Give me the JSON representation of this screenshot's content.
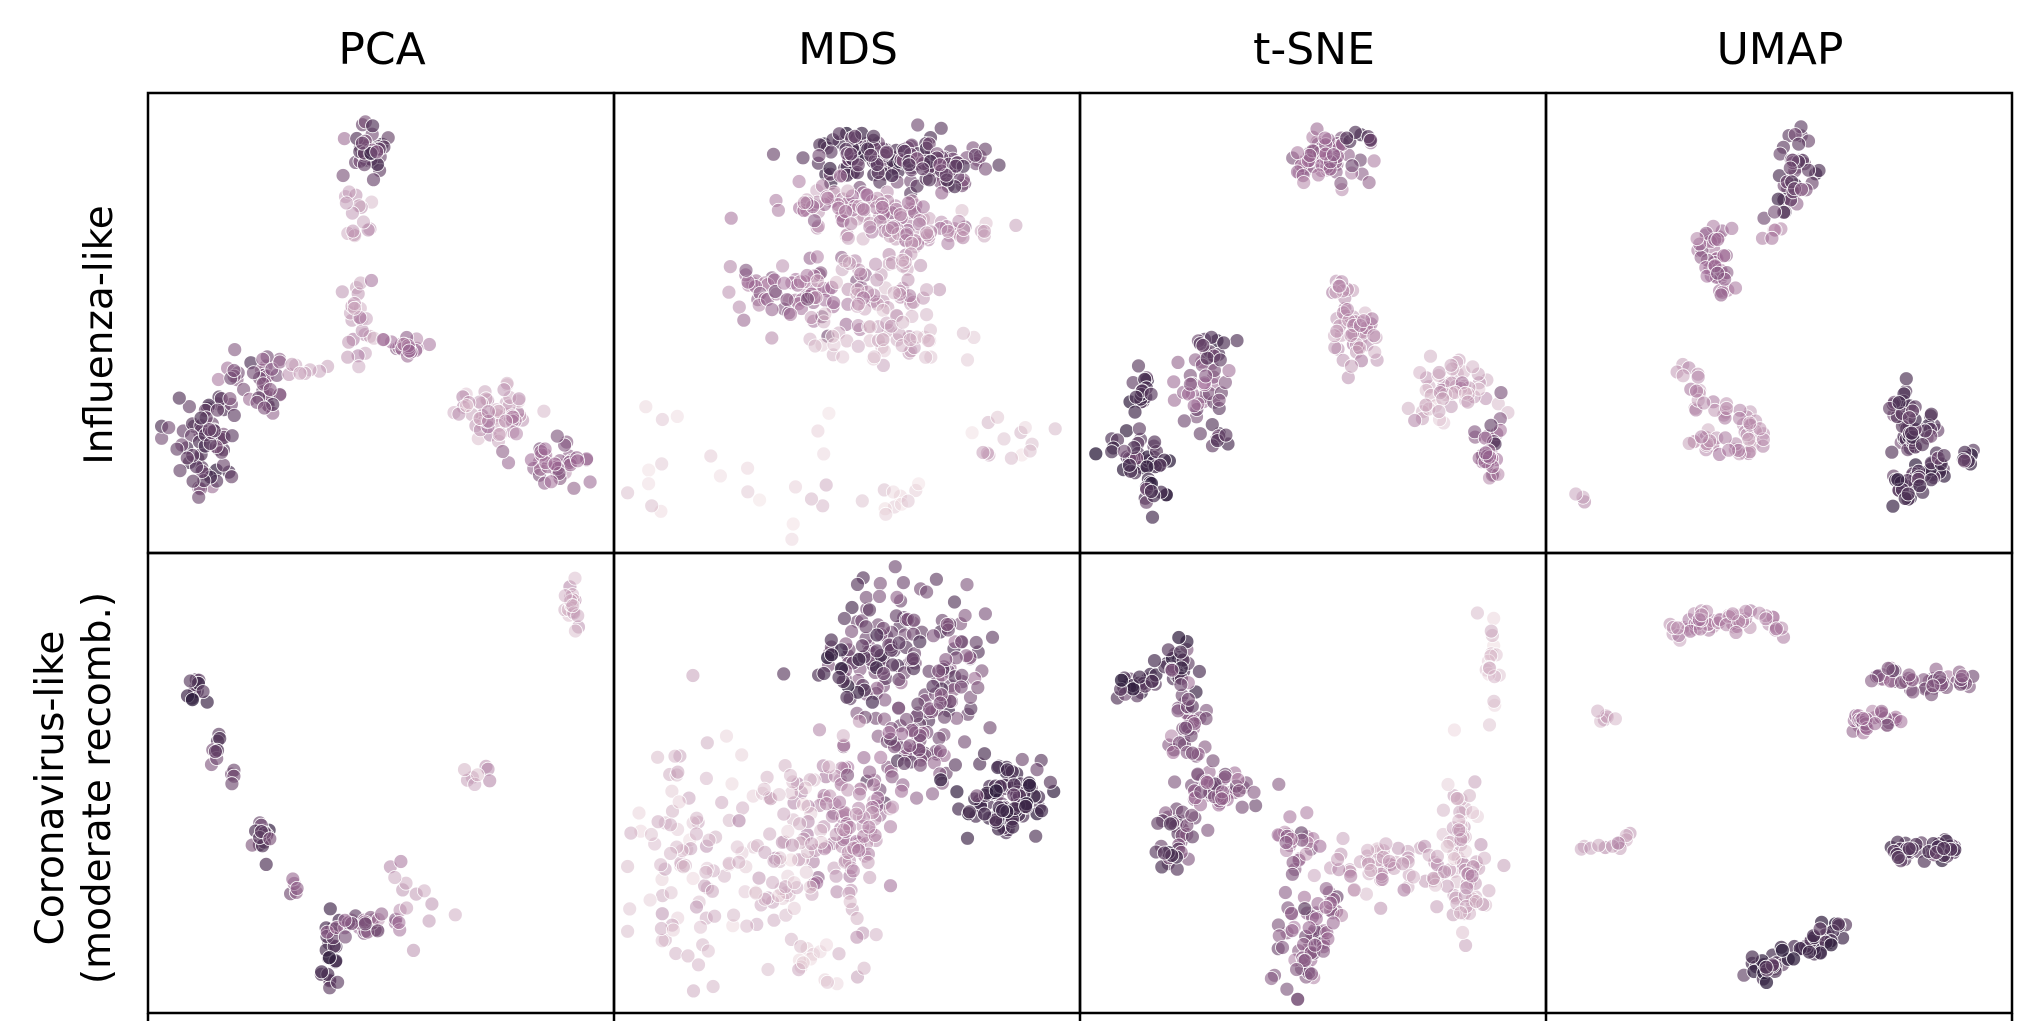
{
  "chart_data": {
    "type": "scatter",
    "title": "",
    "colors": {
      "light": "#ecd3d8",
      "mid": "#a06a96",
      "dark": "#2b1c3b"
    },
    "columns": [
      "PCA",
      "MDS",
      "t-SNE",
      "UMAP"
    ],
    "rows": [
      {
        "label_lines": [
          "Influenza-like"
        ]
      },
      {
        "label_lines": [
          "Coronavirus-like",
          "(moderate recomb.)"
        ]
      }
    ],
    "axes": {
      "xlim": [
        0,
        100
      ],
      "ylim": [
        0,
        100
      ],
      "ticks": false,
      "grid": false,
      "legend": "none"
    },
    "panels": [
      {
        "method": "PCA",
        "row": "Influenza-like",
        "clusters": [
          {
            "x": 47,
            "y": 92,
            "sx": 3,
            "sy": 3,
            "n": 40,
            "shade": 0.75
          },
          {
            "x": 44,
            "y": 76,
            "sx": 1.5,
            "sy": 6,
            "n": 14,
            "shade": 0.3
          },
          {
            "x": 45,
            "y": 55,
            "sx": 1.5,
            "sy": 7,
            "n": 26,
            "shade": 0.35
          },
          {
            "x": 57,
            "y": 44,
            "sx": 3,
            "sy": 1.5,
            "n": 18,
            "shade": 0.5
          },
          {
            "x": 8,
            "y": 22,
            "sx": 3.5,
            "sy": 6,
            "n": 70,
            "shade": 0.78
          },
          {
            "x": 20,
            "y": 35,
            "sx": 4,
            "sy": 4,
            "n": 40,
            "shade": 0.62
          },
          {
            "x": 32,
            "y": 39,
            "sx": 2.5,
            "sy": 1.5,
            "n": 8,
            "shade": 0.3
          },
          {
            "x": 77,
            "y": 28,
            "sx": 5.5,
            "sy": 3,
            "n": 55,
            "shade": 0.3
          },
          {
            "x": 91,
            "y": 17,
            "sx": 3.5,
            "sy": 3,
            "n": 40,
            "shade": 0.55
          }
        ]
      },
      {
        "method": "MDS",
        "row": "Influenza-like",
        "clusters": [
          {
            "x": 55,
            "y": 90,
            "sx": 7,
            "sy": 3,
            "n": 90,
            "shade": 0.82
          },
          {
            "x": 72,
            "y": 88,
            "sx": 6,
            "sy": 3,
            "n": 75,
            "shade": 0.72
          },
          {
            "x": 52,
            "y": 78,
            "sx": 11,
            "sy": 2.5,
            "n": 80,
            "shade": 0.4
          },
          {
            "x": 68,
            "y": 72,
            "sx": 10,
            "sy": 2,
            "n": 55,
            "shade": 0.35
          },
          {
            "x": 38,
            "y": 58,
            "sx": 9,
            "sy": 4,
            "n": 75,
            "shade": 0.5
          },
          {
            "x": 58,
            "y": 56,
            "sx": 8,
            "sy": 6,
            "n": 70,
            "shade": 0.3
          },
          {
            "x": 62,
            "y": 45,
            "sx": 8,
            "sy": 3,
            "n": 30,
            "shade": 0.15
          },
          {
            "x": 20,
            "y": 15,
            "sx": 18,
            "sy": 9,
            "n": 22,
            "shade": 0.1
          },
          {
            "x": 90,
            "y": 20,
            "sx": 6,
            "sy": 4,
            "n": 14,
            "shade": 0.15
          },
          {
            "x": 60,
            "y": 8,
            "sx": 9,
            "sy": 2,
            "n": 12,
            "shade": 0.1
          }
        ]
      },
      {
        "method": "t-SNE",
        "row": "Influenza-like",
        "clusters": [
          {
            "x": 53,
            "y": 90,
            "sx": 4,
            "sy": 3,
            "n": 70,
            "shade": 0.55
          },
          {
            "x": 61,
            "y": 95,
            "sx": 2,
            "sy": 1.2,
            "n": 8,
            "shade": 0.85
          },
          {
            "x": 9,
            "y": 33,
            "sx": 2,
            "sy": 2,
            "n": 18,
            "shade": 0.85
          },
          {
            "x": 24,
            "y": 34,
            "sx": 3,
            "sy": 4,
            "n": 35,
            "shade": 0.6
          },
          {
            "x": 26,
            "y": 44,
            "sx": 2,
            "sy": 2,
            "n": 14,
            "shade": 0.85
          },
          {
            "x": 8,
            "y": 18,
            "sx": 3,
            "sy": 3,
            "n": 40,
            "shade": 0.85
          },
          {
            "x": 12,
            "y": 8,
            "sx": 1.5,
            "sy": 2,
            "n": 12,
            "shade": 0.85
          },
          {
            "x": 28,
            "y": 22,
            "sx": 1.5,
            "sy": 1.5,
            "n": 8,
            "shade": 0.85
          },
          {
            "x": 60,
            "y": 48,
            "sx": 3,
            "sy": 4,
            "n": 50,
            "shade": 0.35
          },
          {
            "x": 56,
            "y": 60,
            "sx": 1,
            "sy": 2,
            "n": 8,
            "shade": 0.35
          },
          {
            "x": 84,
            "y": 34,
            "sx": 5,
            "sy": 3,
            "n": 45,
            "shade": 0.25
          },
          {
            "x": 92,
            "y": 20,
            "sx": 2,
            "sy": 4,
            "n": 30,
            "shade": 0.55
          },
          {
            "x": 78,
            "y": 27,
            "sx": 2,
            "sy": 2,
            "n": 8,
            "shade": 0.25
          }
        ]
      },
      {
        "method": "UMAP",
        "row": "Influenza-like",
        "path_clusters": [
          {
            "path": [
              [
                55,
                96
              ],
              [
                55,
                84
              ],
              [
                50,
                76
              ]
            ],
            "w": 2.2,
            "n": 45,
            "shade": 0.75
          },
          {
            "path": [
              [
                36,
                73
              ],
              [
                33,
                66
              ],
              [
                36,
                60
              ]
            ],
            "w": 1.8,
            "n": 40,
            "shade": 0.5
          },
          {
            "path": [
              [
                27,
                40
              ],
              [
                32,
                30
              ],
              [
                40,
                27
              ],
              [
                45,
                25
              ]
            ],
            "w": 1.5,
            "n": 30,
            "shade": 0.35
          },
          {
            "path": [
              [
                30,
                22
              ],
              [
                38,
                19
              ],
              [
                44,
                20
              ],
              [
                45,
                26
              ]
            ],
            "w": 1.5,
            "n": 35,
            "shade": 0.35
          },
          {
            "path": [
              [
                78,
                32
              ],
              [
                82,
                20
              ],
              [
                86,
                28
              ]
            ],
            "w": 1.8,
            "n": 55,
            "shade": 0.8
          },
          {
            "path": [
              [
                76,
                10
              ],
              [
                86,
                14
              ],
              [
                88,
                16
              ]
            ],
            "w": 1.8,
            "n": 50,
            "shade": 0.85
          },
          {
            "path": [
              [
                95,
                19
              ],
              [
                95,
                16
              ]
            ],
            "w": 1,
            "n": 8,
            "shade": 0.85
          },
          {
            "path": [
              [
                48,
                71
              ],
              [
                48,
                72
              ]
            ],
            "w": 1,
            "n": 5,
            "shade": 0.45
          },
          {
            "path": [
              [
                3,
                8
              ],
              [
                3,
                9
              ]
            ],
            "w": 1,
            "n": 3,
            "shade": 0.3
          }
        ]
      },
      {
        "method": "PCA",
        "row": "Coronavirus-like",
        "clusters": [
          {
            "x": 95,
            "y": 92,
            "sx": 1,
            "sy": 3,
            "n": 20,
            "shade": 0.25
          },
          {
            "x": 6,
            "y": 73,
            "sx": 1,
            "sy": 2,
            "n": 12,
            "shade": 0.85
          },
          {
            "x": 11,
            "y": 58,
            "sx": 1,
            "sy": 3,
            "n": 9,
            "shade": 0.8
          },
          {
            "x": 15,
            "y": 52,
            "sx": 1,
            "sy": 1,
            "n": 4,
            "shade": 0.7
          },
          {
            "x": 22,
            "y": 36,
            "sx": 1.2,
            "sy": 3,
            "n": 15,
            "shade": 0.8
          },
          {
            "x": 29,
            "y": 25,
            "sx": 1,
            "sy": 1.5,
            "n": 5,
            "shade": 0.55
          },
          {
            "x": 38,
            "y": 8,
            "sx": 1,
            "sy": 6,
            "n": 22,
            "shade": 0.85
          },
          {
            "x": 47,
            "y": 16,
            "sx": 4,
            "sy": 1.2,
            "n": 30,
            "shade": 0.6
          },
          {
            "x": 58,
            "y": 21,
            "sx": 4,
            "sy": 5,
            "n": 14,
            "shade": 0.35
          },
          {
            "x": 74,
            "y": 52,
            "sx": 2,
            "sy": 2,
            "n": 8,
            "shade": 0.3
          }
        ]
      },
      {
        "method": "MDS",
        "row": "Coronavirus-like",
        "clusters": [
          {
            "x": 58,
            "y": 82,
            "sx": 6,
            "sy": 8,
            "n": 90,
            "shade": 0.72
          },
          {
            "x": 72,
            "y": 76,
            "sx": 6,
            "sy": 9,
            "n": 80,
            "shade": 0.7
          },
          {
            "x": 66,
            "y": 58,
            "sx": 5,
            "sy": 6,
            "n": 55,
            "shade": 0.65
          },
          {
            "x": 88,
            "y": 45,
            "sx": 5,
            "sy": 5,
            "n": 100,
            "shade": 0.88
          },
          {
            "x": 48,
            "y": 45,
            "sx": 6,
            "sy": 8,
            "n": 70,
            "shade": 0.45
          },
          {
            "x": 52,
            "y": 32,
            "sx": 3,
            "sy": 12,
            "n": 45,
            "shade": 0.35
          },
          {
            "x": 12,
            "y": 32,
            "sx": 7,
            "sy": 16,
            "n": 90,
            "shade": 0.2
          },
          {
            "x": 35,
            "y": 34,
            "sx": 5,
            "sy": 12,
            "n": 70,
            "shade": 0.2
          },
          {
            "x": 42,
            "y": 8,
            "sx": 3,
            "sy": 4,
            "n": 14,
            "shade": 0.15
          },
          {
            "x": 48,
            "y": 78,
            "sx": 5,
            "sy": 6,
            "n": 18,
            "shade": 0.85
          }
        ]
      },
      {
        "method": "t-SNE",
        "row": "Coronavirus-like",
        "clusters": [
          {
            "x": 8,
            "y": 74,
            "sx": 2.5,
            "sy": 2,
            "n": 25,
            "shade": 0.85
          },
          {
            "x": 18,
            "y": 79,
            "sx": 2,
            "sy": 3,
            "n": 30,
            "shade": 0.85
          },
          {
            "x": 20,
            "y": 63,
            "sx": 2,
            "sy": 5,
            "n": 40,
            "shade": 0.65
          },
          {
            "x": 28,
            "y": 48,
            "sx": 5,
            "sy": 3,
            "n": 45,
            "shade": 0.62
          },
          {
            "x": 18,
            "y": 40,
            "sx": 2.5,
            "sy": 4,
            "n": 25,
            "shade": 0.7
          },
          {
            "x": 16,
            "y": 33,
            "sx": 2,
            "sy": 2,
            "n": 12,
            "shade": 0.82
          },
          {
            "x": 46,
            "y": 35,
            "sx": 2,
            "sy": 3,
            "n": 25,
            "shade": 0.5
          },
          {
            "x": 48,
            "y": 12,
            "sx": 3,
            "sy": 8,
            "n": 55,
            "shade": 0.62
          },
          {
            "x": 54,
            "y": 20,
            "sx": 2.5,
            "sy": 2,
            "n": 12,
            "shade": 0.6
          },
          {
            "x": 68,
            "y": 30,
            "sx": 8,
            "sy": 3,
            "n": 60,
            "shade": 0.3
          },
          {
            "x": 86,
            "y": 24,
            "sx": 3,
            "sy": 6,
            "n": 45,
            "shade": 0.3
          },
          {
            "x": 84,
            "y": 43,
            "sx": 2,
            "sy": 6,
            "n": 30,
            "shade": 0.2
          },
          {
            "x": 92,
            "y": 78,
            "sx": 1,
            "sy": 6,
            "n": 18,
            "shade": 0.15
          }
        ]
      },
      {
        "method": "UMAP",
        "row": "Coronavirus-like",
        "path_clusters": [
          {
            "path": [
              [
                25,
                86
              ],
              [
                31,
                88
              ],
              [
                37,
                89
              ],
              [
                45,
                89
              ],
              [
                50,
                88
              ]
            ],
            "w": 1.5,
            "n": 55,
            "shade": 0.4
          },
          {
            "path": [
              [
                74,
                76
              ],
              [
                80,
                74
              ],
              [
                88,
                74
              ],
              [
                97,
                74
              ]
            ],
            "w": 1.2,
            "n": 50,
            "shade": 0.65
          },
          {
            "path": [
              [
                68,
                64
              ],
              [
                74,
                65
              ],
              [
                78,
                65
              ]
            ],
            "w": 1,
            "n": 30,
            "shade": 0.55
          },
          {
            "path": [
              [
                8,
                66
              ],
              [
                9,
                66
              ]
            ],
            "w": 1,
            "n": 6,
            "shade": 0.3
          },
          {
            "path": [
              [
                3,
                35
              ],
              [
                8,
                34
              ],
              [
                16,
                37
              ]
            ],
            "w": 1,
            "n": 12,
            "shade": 0.3
          },
          {
            "path": [
              [
                77,
                34
              ],
              [
                84,
                34
              ],
              [
                92,
                34
              ]
            ],
            "w": 1.3,
            "n": 45,
            "shade": 0.82
          },
          {
            "path": [
              [
                43,
                4
              ],
              [
                52,
                8
              ],
              [
                60,
                12
              ],
              [
                64,
                14
              ]
            ],
            "w": 1.5,
            "n": 60,
            "shade": 0.88
          }
        ]
      }
    ]
  }
}
